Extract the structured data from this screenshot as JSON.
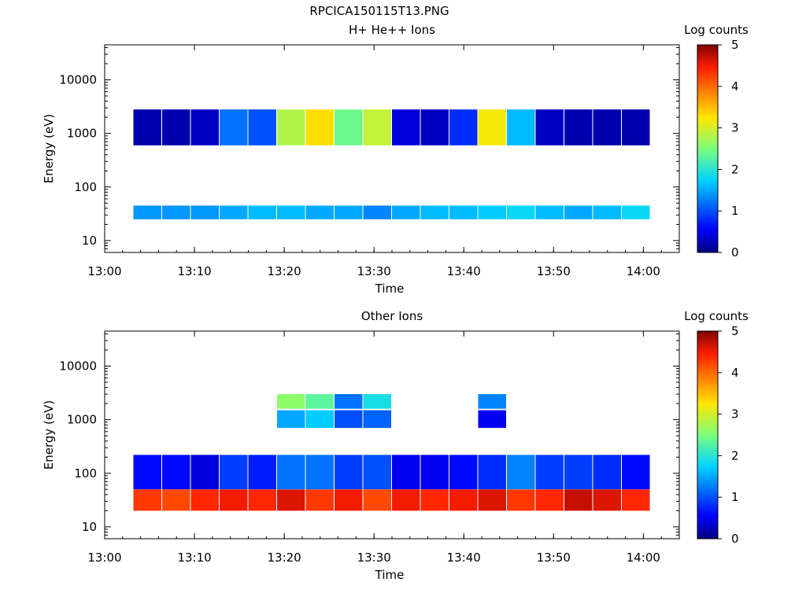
{
  "figure_title": "RPCICA150115T13.PNG",
  "colors": {
    "axis": "#000000",
    "background": "#ffffff"
  },
  "chart_data": [
    {
      "type": "heatmap",
      "title": "H+ He++ Ions",
      "xlabel": "Time",
      "ylabel": "Energy (eV)",
      "xlim": [
        "13:00",
        "14:04"
      ],
      "ylim": [
        6,
        45000
      ],
      "yscale": "log",
      "xticks": [
        "13:00",
        "13:10",
        "13:20",
        "13:30",
        "13:40",
        "13:50",
        "14:00"
      ],
      "yticks": [
        "10",
        "100",
        "1000",
        "10000"
      ],
      "colorbar": {
        "label": "Log counts",
        "min": 0,
        "max": 5,
        "ticks": [
          "0",
          "1",
          "2",
          "3",
          "4",
          "5"
        ]
      },
      "time_bins_start_min": [
        3.2,
        6.4,
        9.6,
        12.8,
        16.0,
        19.2,
        22.4,
        25.6,
        28.8,
        32.0,
        35.2,
        38.4,
        41.6,
        44.8,
        48.0,
        51.2,
        54.4,
        57.6
      ],
      "bands": [
        {
          "energy_eV": [
            25,
            45
          ],
          "values": [
            1.4,
            1.4,
            1.4,
            1.5,
            1.6,
            1.6,
            1.5,
            1.5,
            1.3,
            1.5,
            1.6,
            1.6,
            1.7,
            1.8,
            1.6,
            1.5,
            1.6,
            1.8
          ]
        },
        {
          "energy_eV": [
            600,
            2800
          ],
          "values": [
            0.2,
            0.2,
            0.3,
            1.2,
            1.0,
            2.8,
            3.3,
            2.4,
            2.9,
            0.4,
            0.3,
            0.8,
            3.2,
            1.6,
            0.3,
            0.2,
            0.2,
            0.2
          ]
        }
      ]
    },
    {
      "type": "heatmap",
      "title": "Other Ions",
      "xlabel": "Time",
      "ylabel": "Energy (eV)",
      "xlim": [
        "13:00",
        "14:04"
      ],
      "ylim": [
        6,
        45000
      ],
      "yscale": "log",
      "xticks": [
        "13:00",
        "13:10",
        "13:20",
        "13:30",
        "13:40",
        "13:50",
        "14:00"
      ],
      "yticks": [
        "10",
        "100",
        "1000",
        "10000"
      ],
      "colorbar": {
        "label": "Log counts",
        "min": 0,
        "max": 5,
        "ticks": [
          "0",
          "1",
          "2",
          "3",
          "4",
          "5"
        ]
      },
      "time_bins_start_min": [
        3.2,
        6.4,
        9.6,
        12.8,
        16.0,
        19.2,
        22.4,
        25.6,
        28.8,
        32.0,
        35.2,
        38.4,
        41.6,
        44.8,
        48.0,
        51.2,
        54.4,
        57.6
      ],
      "bands": [
        {
          "energy_eV": [
            20,
            50
          ],
          "values": [
            4.3,
            4.2,
            4.4,
            4.5,
            4.4,
            4.6,
            4.3,
            4.5,
            4.2,
            4.5,
            4.4,
            4.5,
            4.6,
            4.3,
            4.4,
            4.7,
            4.6,
            4.4
          ]
        },
        {
          "energy_eV": [
            50,
            220
          ],
          "values": [
            0.6,
            0.6,
            0.4,
            0.9,
            0.7,
            1.2,
            1.2,
            0.9,
            1.0,
            0.5,
            0.5,
            0.6,
            0.8,
            1.3,
            0.9,
            0.9,
            0.8,
            0.6
          ]
        },
        {
          "energy_eV": [
            1600,
            3000
          ],
          "values": [
            0.0,
            0.0,
            0.0,
            0.0,
            0.0,
            2.6,
            2.3,
            1.2,
            1.9,
            0.0,
            0.0,
            0.0,
            1.3,
            0.0,
            0.0,
            0.0,
            0.0,
            0.0
          ]
        },
        {
          "energy_eV": [
            700,
            1500
          ],
          "values": [
            0.0,
            0.0,
            0.0,
            0.0,
            0.0,
            1.5,
            1.7,
            1.0,
            1.1,
            0.0,
            0.0,
            0.0,
            0.5,
            0.0,
            0.0,
            0.0,
            0.0,
            0.0
          ]
        }
      ]
    }
  ]
}
